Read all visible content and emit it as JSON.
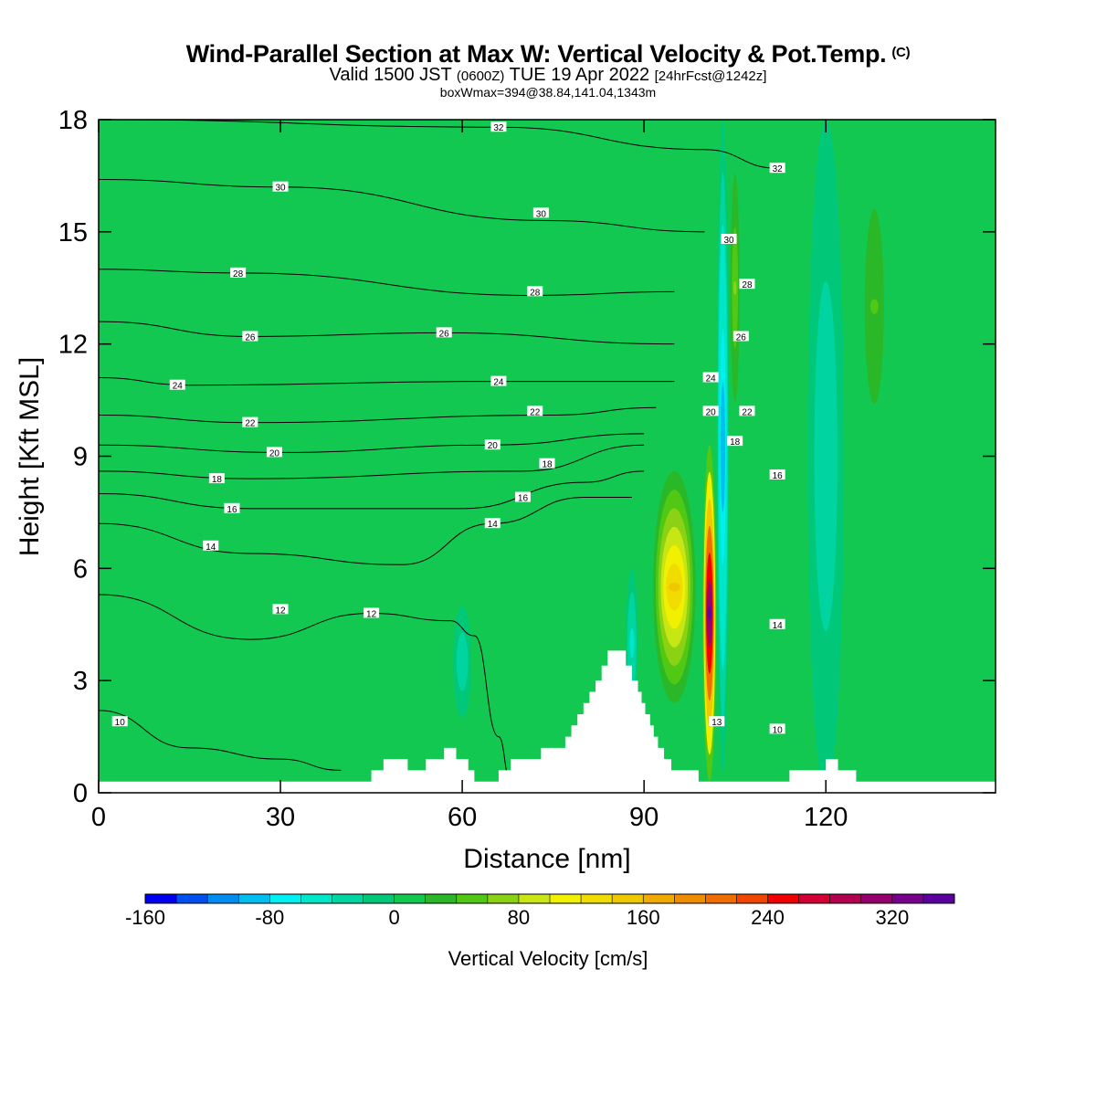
{
  "header": {
    "title_main": "Wind-Parallel Section at Max W: Vertical Velocity & Pot.Temp.",
    "title_copyright": "(C)",
    "subtitle_a": "Valid 1500 JST",
    "subtitle_b": "(0600Z)",
    "subtitle_c": "TUE 19 Apr 2022",
    "subtitle_d": "[24hrFcst@1242z]",
    "subtitle_box": "boxWmax=394@38.84,141.04,1343m"
  },
  "colors": {
    "background_field": "#13c850",
    "terrain": "#ffffff",
    "contour": "#000000",
    "colorbar": [
      "#0000f0",
      "#0050f0",
      "#008cf0",
      "#00bef0",
      "#00f0f0",
      "#00e6c8",
      "#00d4a0",
      "#00c878",
      "#13c850",
      "#2ab828",
      "#50c814",
      "#8cd214",
      "#c8e614",
      "#f0f000",
      "#f0dc00",
      "#f0c800",
      "#f0aa00",
      "#f08c00",
      "#f06e00",
      "#f04600",
      "#f00000",
      "#d20032",
      "#b40050",
      "#96006e",
      "#78008c",
      "#5a00a0"
    ]
  },
  "chart_data": {
    "type": "heatmap",
    "xlabel": "Distance [nm]",
    "ylabel": "Height [Kft MSL]",
    "xlim": [
      0,
      148
    ],
    "ylim": [
      0,
      18
    ],
    "xticks": [
      0,
      30,
      60,
      90,
      120
    ],
    "yticks": [
      0,
      3,
      6,
      9,
      12,
      15,
      18
    ],
    "colorbar": {
      "title": "Vertical Velocity [cm/s]",
      "min": -160,
      "max": 360,
      "step": 20,
      "tick_values": [
        -160,
        -80,
        0,
        80,
        160,
        240,
        320
      ]
    },
    "w_features": [
      {
        "x_center": 95,
        "half_width": 3.5,
        "z_bottom": 2.4,
        "z_top": 8.6,
        "peak_w": 150
      },
      {
        "x_center": 100.8,
        "half_width": 1.1,
        "z_bottom": 0.3,
        "z_top": 9.3,
        "peak_w": 350
      },
      {
        "x_center": 103,
        "half_width": 1.0,
        "z_bottom": 0.5,
        "z_top": 18,
        "peak_w": -100
      },
      {
        "x_center": 105,
        "half_width": 1.0,
        "z_bottom": 9,
        "z_top": 18,
        "peak_w": 60
      },
      {
        "x_center": 88,
        "half_width": 1.0,
        "z_bottom": 2,
        "z_top": 6,
        "peak_w": -50
      },
      {
        "x_center": 120,
        "half_width": 3.0,
        "z_bottom": 0,
        "z_top": 18,
        "peak_w": -40
      },
      {
        "x_center": 128,
        "half_width": 2.5,
        "z_bottom": 8,
        "z_top": 18,
        "peak_w": 40
      },
      {
        "x_center": 60,
        "half_width": 1.5,
        "z_bottom": 2,
        "z_top": 5,
        "peak_w": -40
      }
    ],
    "theta_contours": [
      {
        "label": "10",
        "label_x": 3.5,
        "label_y": 1.9,
        "points": [
          [
            0,
            2.2
          ],
          [
            15,
            1.2
          ],
          [
            30,
            0.9
          ],
          [
            40,
            0.6
          ]
        ]
      },
      {
        "label": "12",
        "label_x": 45,
        "label_y": 4.8,
        "points": [
          [
            0,
            5.3
          ],
          [
            25,
            4.1
          ],
          [
            45,
            4.8
          ],
          [
            58,
            4.6
          ],
          [
            62,
            4.2
          ],
          [
            66,
            1.5
          ],
          [
            68,
            0.3
          ]
        ]
      },
      {
        "label": "14",
        "label_x": 18.5,
        "label_y": 6.6,
        "points": [
          [
            0,
            7.2
          ],
          [
            25,
            6.4
          ],
          [
            50,
            6.1
          ],
          [
            65,
            7.2
          ],
          [
            80,
            7.9
          ],
          [
            88,
            7.9
          ]
        ]
      },
      {
        "label": "16",
        "label_x": 22,
        "label_y": 7.6,
        "points": [
          [
            0,
            8.0
          ],
          [
            25,
            7.6
          ],
          [
            60,
            7.6
          ],
          [
            80,
            8.3
          ],
          [
            90,
            8.6
          ]
        ]
      },
      {
        "label": "18",
        "label_x": 19.5,
        "label_y": 8.4,
        "points": [
          [
            0,
            8.6
          ],
          [
            25,
            8.4
          ],
          [
            70,
            8.6
          ],
          [
            90,
            9.3
          ]
        ]
      },
      {
        "label": "20",
        "label_x": 29,
        "label_y": 9.1,
        "points": [
          [
            0,
            9.3
          ],
          [
            30,
            9.1
          ],
          [
            65,
            9.3
          ],
          [
            90,
            9.6
          ]
        ]
      },
      {
        "label": "22",
        "label_x": 25,
        "label_y": 9.9,
        "points": [
          [
            0,
            10.1
          ],
          [
            25,
            9.9
          ],
          [
            75,
            10.1
          ],
          [
            92,
            10.3
          ]
        ]
      },
      {
        "label": "24",
        "label_x": 13,
        "label_y": 10.9,
        "points": [
          [
            0,
            11.1
          ],
          [
            15,
            10.9
          ],
          [
            65,
            11.0
          ],
          [
            95,
            11.0
          ]
        ]
      },
      {
        "label": "26",
        "label_x": 25,
        "label_y": 12.2,
        "points": [
          [
            0,
            12.6
          ],
          [
            25,
            12.2
          ],
          [
            57,
            12.3
          ],
          [
            95,
            12.0
          ]
        ]
      },
      {
        "label": "28",
        "label_x": 23,
        "label_y": 13.9,
        "points": [
          [
            0,
            14.0
          ],
          [
            23,
            13.9
          ],
          [
            72,
            13.3
          ],
          [
            95,
            13.4
          ]
        ]
      },
      {
        "label": "30",
        "label_x": 30,
        "label_y": 16.2,
        "points": [
          [
            0,
            16.4
          ],
          [
            30,
            16.2
          ],
          [
            74,
            15.3
          ],
          [
            100,
            15.0
          ]
        ]
      },
      {
        "label": "32",
        "label_x": 66,
        "label_y": 17.8,
        "points": [
          [
            0,
            18.0
          ],
          [
            66,
            17.8
          ],
          [
            100,
            17.2
          ],
          [
            112,
            16.7
          ]
        ]
      }
    ],
    "theta_labels_other": [
      {
        "label": "12",
        "x": 30,
        "y": 4.9
      },
      {
        "label": "14",
        "x": 65,
        "y": 7.2
      },
      {
        "label": "16",
        "x": 70,
        "y": 7.9
      },
      {
        "label": "18",
        "x": 74,
        "y": 8.8
      },
      {
        "label": "20",
        "x": 65,
        "y": 9.3
      },
      {
        "label": "22",
        "x": 72,
        "y": 10.2
      },
      {
        "label": "24",
        "x": 66,
        "y": 11.0
      },
      {
        "label": "26",
        "x": 57,
        "y": 12.3
      },
      {
        "label": "28",
        "x": 72,
        "y": 13.4
      },
      {
        "label": "30",
        "x": 73,
        "y": 15.5
      },
      {
        "label": "32",
        "x": 112,
        "y": 16.7
      },
      {
        "label": "30",
        "x": 104,
        "y": 14.8
      },
      {
        "label": "28",
        "x": 107,
        "y": 13.6
      },
      {
        "label": "26",
        "x": 106,
        "y": 12.2
      },
      {
        "label": "24",
        "x": 101,
        "y": 11.1
      },
      {
        "label": "20",
        "x": 101,
        "y": 10.2
      },
      {
        "label": "22",
        "x": 107,
        "y": 10.2
      },
      {
        "label": "18",
        "x": 105,
        "y": 9.4
      },
      {
        "label": "16",
        "x": 112,
        "y": 8.5
      },
      {
        "label": "14",
        "x": 112,
        "y": 4.5
      },
      {
        "label": "13",
        "x": 102,
        "y": 1.9
      },
      {
        "label": "10",
        "x": 112,
        "y": 1.7
      }
    ],
    "terrain_profile": [
      [
        0,
        0.3
      ],
      [
        45,
        0.3
      ],
      [
        45,
        0.6
      ],
      [
        47,
        0.6
      ],
      [
        47,
        0.9
      ],
      [
        51,
        0.9
      ],
      [
        51,
        0.6
      ],
      [
        54,
        0.6
      ],
      [
        54,
        0.9
      ],
      [
        57,
        0.9
      ],
      [
        57,
        1.2
      ],
      [
        59,
        1.2
      ],
      [
        59,
        0.9
      ],
      [
        61,
        0.9
      ],
      [
        61,
        0.6
      ],
      [
        62,
        0.6
      ],
      [
        62,
        0.3
      ],
      [
        66,
        0.3
      ],
      [
        66,
        0.6
      ],
      [
        68,
        0.6
      ],
      [
        68,
        0.9
      ],
      [
        73,
        0.9
      ],
      [
        73,
        1.2
      ],
      [
        77,
        1.2
      ],
      [
        77,
        1.5
      ],
      [
        78,
        1.5
      ],
      [
        78,
        1.8
      ],
      [
        79,
        1.8
      ],
      [
        79,
        2.1
      ],
      [
        80,
        2.1
      ],
      [
        80,
        2.4
      ],
      [
        81,
        2.4
      ],
      [
        81,
        2.7
      ],
      [
        82,
        2.7
      ],
      [
        82,
        3.0
      ],
      [
        83,
        3.0
      ],
      [
        83,
        3.4
      ],
      [
        84,
        3.4
      ],
      [
        84,
        3.8
      ],
      [
        87,
        3.8
      ],
      [
        87,
        3.4
      ],
      [
        88,
        3.4
      ],
      [
        88,
        3.0
      ],
      [
        89,
        3.0
      ],
      [
        89,
        2.7
      ],
      [
        89.6,
        2.7
      ],
      [
        89.6,
        2.4
      ],
      [
        90.2,
        2.4
      ],
      [
        90.2,
        2.1
      ],
      [
        91,
        2.1
      ],
      [
        91,
        1.8
      ],
      [
        91.6,
        1.8
      ],
      [
        91.6,
        1.5
      ],
      [
        92.3,
        1.5
      ],
      [
        92.3,
        1.2
      ],
      [
        93.3,
        1.2
      ],
      [
        93.3,
        0.9
      ],
      [
        94.5,
        0.9
      ],
      [
        94.5,
        0.6
      ],
      [
        99,
        0.6
      ],
      [
        99,
        0.3
      ],
      [
        114,
        0.3
      ],
      [
        114,
        0.6
      ],
      [
        120,
        0.6
      ],
      [
        120,
        0.9
      ],
      [
        122,
        0.9
      ],
      [
        122,
        0.6
      ],
      [
        125,
        0.6
      ],
      [
        125,
        0.3
      ],
      [
        148,
        0.3
      ]
    ]
  }
}
